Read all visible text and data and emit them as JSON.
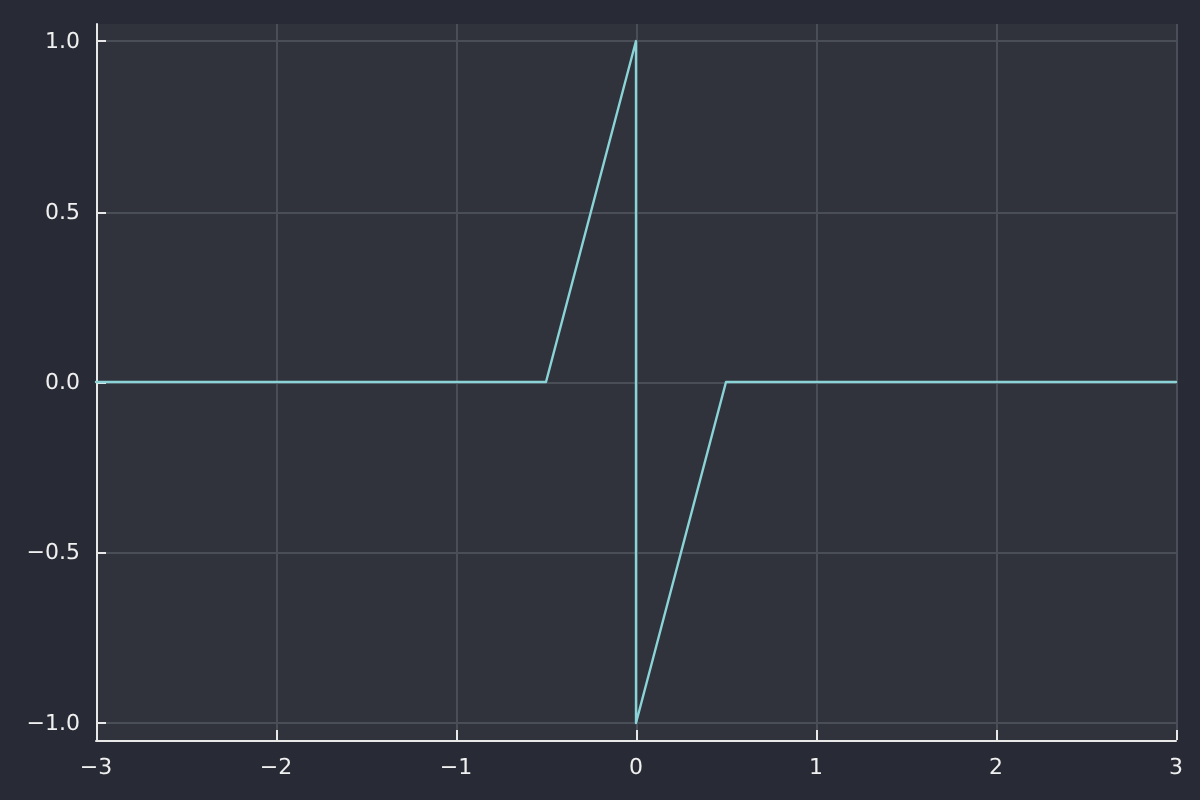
{
  "chart_data": {
    "type": "line",
    "x": [
      -3,
      -0.5,
      0,
      0,
      0.5,
      3
    ],
    "series": [
      {
        "color": "#8ad3d6",
        "values": [
          0,
          0,
          1,
          -1,
          0,
          0
        ]
      }
    ],
    "xlim": [
      -3,
      3
    ],
    "xticks": [
      {
        "value": -3,
        "label": "−3"
      },
      {
        "value": -2,
        "label": "−2"
      },
      {
        "value": -1,
        "label": "−1"
      },
      0,
      1,
      2,
      3
    ],
    "ylim": [
      -1.05,
      1.05
    ],
    "yticks": [
      {
        "value": -1,
        "label": "−1.0"
      },
      {
        "value": -0.5,
        "label": "−0.5"
      },
      {
        "value": 0,
        "label": "0.0"
      },
      {
        "value": 0.5,
        "label": "0.5"
      },
      {
        "value": 1,
        "label": "1.0"
      }
    ],
    "grid": true,
    "marker": "none",
    "line_style": "solid"
  }
}
